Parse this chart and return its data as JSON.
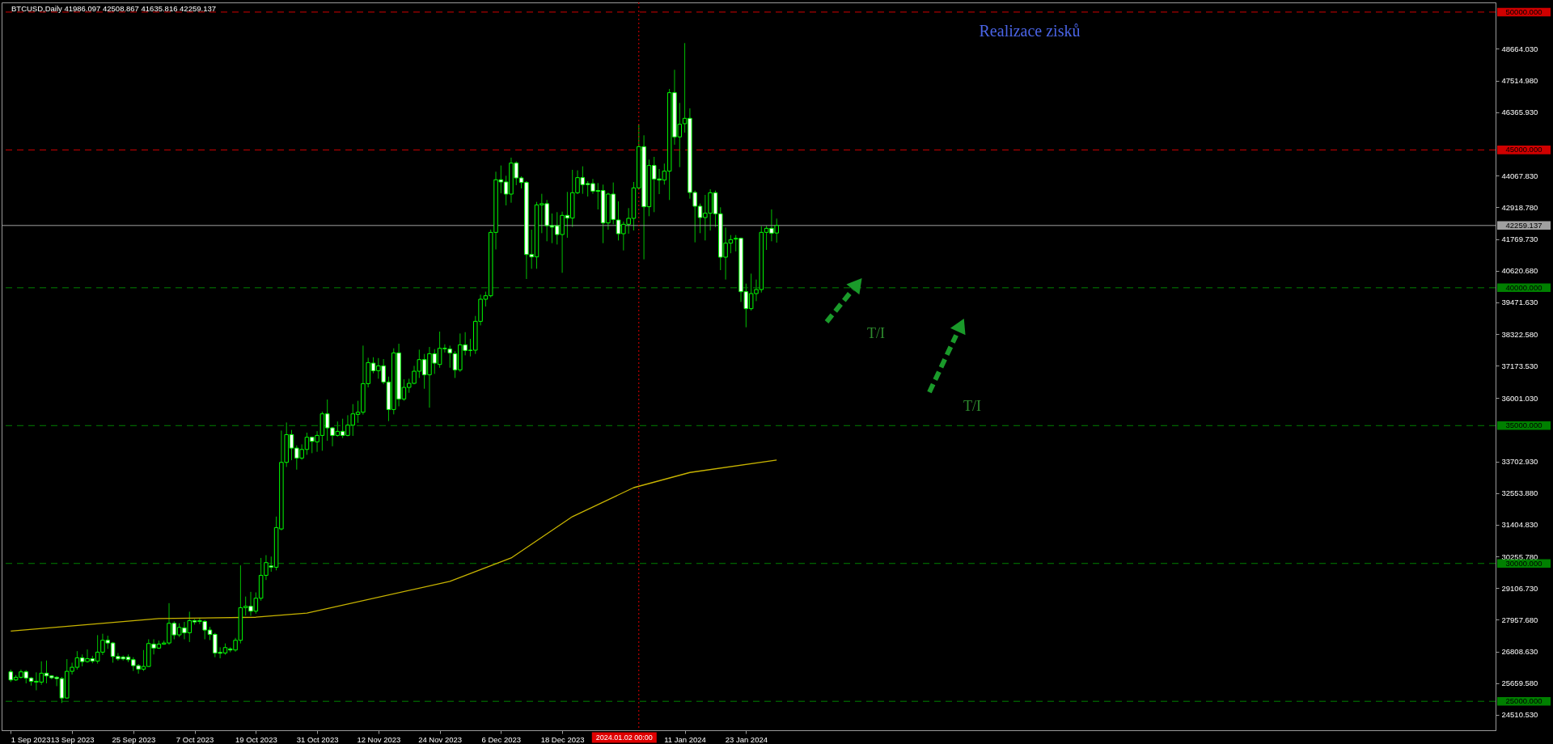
{
  "chart_data": {
    "type": "candlestick",
    "title": "BTCUSD,Daily  41986.097 42508.867 41635.816 42259.137",
    "x": [
      "2023-09-01",
      "2023-09-02",
      "2023-09-03",
      "2023-09-04",
      "2023-09-05",
      "2023-09-06",
      "2023-09-07",
      "2023-09-08",
      "2023-09-09",
      "2023-09-10",
      "2023-09-11",
      "2023-09-12",
      "2023-09-13",
      "2023-09-14",
      "2023-09-15",
      "2023-09-16",
      "2023-09-17",
      "2023-09-18",
      "2023-09-19",
      "2023-09-20",
      "2023-09-21",
      "2023-09-22",
      "2023-09-23",
      "2023-09-24",
      "2023-09-25",
      "2023-09-26",
      "2023-09-27",
      "2023-09-28",
      "2023-09-29",
      "2023-09-30",
      "2023-10-01",
      "2023-10-02",
      "2023-10-03",
      "2023-10-04",
      "2023-10-05",
      "2023-10-06",
      "2023-10-07",
      "2023-10-08",
      "2023-10-09",
      "2023-10-10",
      "2023-10-11",
      "2023-10-12",
      "2023-10-13",
      "2023-10-14",
      "2023-10-15",
      "2023-10-16",
      "2023-10-17",
      "2023-10-18",
      "2023-10-19",
      "2023-10-20",
      "2023-10-21",
      "2023-10-22",
      "2023-10-23",
      "2023-10-24",
      "2023-10-25",
      "2023-10-26",
      "2023-10-27",
      "2023-10-28",
      "2023-10-29",
      "2023-10-30",
      "2023-10-31",
      "2023-11-01",
      "2023-11-02",
      "2023-11-03",
      "2023-11-04",
      "2023-11-05",
      "2023-11-06",
      "2023-11-07",
      "2023-11-08",
      "2023-11-09",
      "2023-11-10",
      "2023-11-11",
      "2023-11-12",
      "2023-11-13",
      "2023-11-14",
      "2023-11-15",
      "2023-11-16",
      "2023-11-17",
      "2023-11-18",
      "2023-11-19",
      "2023-11-20",
      "2023-11-21",
      "2023-11-22",
      "2023-11-23",
      "2023-11-24",
      "2023-11-25",
      "2023-11-26",
      "2023-11-27",
      "2023-11-28",
      "2023-11-29",
      "2023-11-30",
      "2023-12-01",
      "2023-12-02",
      "2023-12-03",
      "2023-12-04",
      "2023-12-05",
      "2023-12-06",
      "2023-12-07",
      "2023-12-08",
      "2023-12-09",
      "2023-12-10",
      "2023-12-11",
      "2023-12-12",
      "2023-12-13",
      "2023-12-14",
      "2023-12-15",
      "2023-12-16",
      "2023-12-17",
      "2023-12-18",
      "2023-12-19",
      "2023-12-20",
      "2023-12-21",
      "2023-12-22",
      "2023-12-23",
      "2023-12-24",
      "2023-12-25",
      "2023-12-26",
      "2023-12-27",
      "2023-12-28",
      "2023-12-29",
      "2023-12-30",
      "2023-12-31",
      "2024-01-01",
      "2024-01-02",
      "2024-01-03",
      "2024-01-04",
      "2024-01-05",
      "2024-01-06",
      "2024-01-07",
      "2024-01-08",
      "2024-01-09",
      "2024-01-10",
      "2024-01-11",
      "2024-01-12",
      "2024-01-13",
      "2024-01-14",
      "2024-01-15",
      "2024-01-16",
      "2024-01-17",
      "2024-01-18",
      "2024-01-19",
      "2024-01-20",
      "2024-01-21",
      "2024-01-22",
      "2024-01-23",
      "2024-01-24",
      "2024-01-25",
      "2024-01-26",
      "2024-01-27",
      "2024-01-28",
      "2024-01-29"
    ],
    "ohlc": [
      [
        26069,
        26150,
        25700,
        25775
      ],
      [
        25775,
        25950,
        25740,
        25873
      ],
      [
        25873,
        26150,
        25820,
        26069
      ],
      [
        26069,
        26130,
        25650,
        25844
      ],
      [
        25844,
        25880,
        25570,
        25726
      ],
      [
        25726,
        26050,
        25400,
        25697
      ],
      [
        25697,
        26450,
        25600,
        26020
      ],
      [
        26020,
        26480,
        25650,
        25922
      ],
      [
        25922,
        25950,
        25800,
        25854
      ],
      [
        25873,
        25920,
        25550,
        25824
      ],
      [
        25824,
        25880,
        24940,
        25120
      ],
      [
        25120,
        26530,
        25100,
        26088
      ],
      [
        26088,
        26400,
        25970,
        26235
      ],
      [
        26235,
        26820,
        26150,
        26577
      ],
      [
        26577,
        26700,
        26270,
        26440
      ],
      [
        26440,
        26880,
        26400,
        26548
      ],
      [
        26548,
        26650,
        26380,
        26460
      ],
      [
        26460,
        27400,
        26370,
        26783
      ],
      [
        26783,
        27450,
        26680,
        27213
      ],
      [
        27213,
        27380,
        26900,
        27115
      ],
      [
        27115,
        27150,
        26400,
        26626
      ],
      [
        26626,
        26750,
        26470,
        26538
      ],
      [
        26607,
        26660,
        26480,
        26538
      ],
      [
        26607,
        26700,
        26420,
        26509
      ],
      [
        26509,
        26600,
        26100,
        26294
      ],
      [
        26294,
        26350,
        26000,
        26167
      ],
      [
        26167,
        26860,
        26100,
        26264
      ],
      [
        26264,
        27250,
        26250,
        27096
      ],
      [
        27076,
        27250,
        26700,
        26930
      ],
      [
        26930,
        27200,
        26900,
        27076
      ],
      [
        27076,
        27200,
        27050,
        27115
      ],
      [
        27115,
        28560,
        27050,
        27829
      ],
      [
        27829,
        27900,
        27250,
        27409
      ],
      [
        27409,
        27830,
        27330,
        27682
      ],
      [
        27663,
        27880,
        27250,
        27487
      ],
      [
        27487,
        28250,
        27150,
        27927
      ],
      [
        27927,
        27980,
        27780,
        27878
      ],
      [
        27927,
        28030,
        27800,
        27898
      ],
      [
        27898,
        27950,
        27250,
        27585
      ],
      [
        27585,
        27700,
        27220,
        27428
      ],
      [
        27428,
        27480,
        26600,
        26753
      ],
      [
        26773,
        26960,
        26560,
        26744
      ],
      [
        26753,
        27100,
        26690,
        26949
      ],
      [
        26900,
        26960,
        26780,
        26861
      ],
      [
        26861,
        27300,
        26800,
        27213
      ],
      [
        27213,
        29930,
        27100,
        28397
      ],
      [
        28397,
        28800,
        28110,
        28446
      ],
      [
        28446,
        28970,
        28100,
        28269
      ],
      [
        28269,
        28950,
        28180,
        28739
      ],
      [
        28739,
        30200,
        28650,
        29570
      ],
      [
        29570,
        30300,
        29400,
        30030
      ],
      [
        29912,
        30250,
        29700,
        29863
      ],
      [
        29863,
        31700,
        29750,
        31301
      ],
      [
        31252,
        34820,
        31200,
        33667
      ],
      [
        33667,
        35114,
        33500,
        34674
      ],
      [
        34674,
        34841,
        33745,
        34185
      ],
      [
        34185,
        34283,
        33403,
        33823
      ],
      [
        33823,
        34320,
        33760,
        34136
      ],
      [
        34136,
        34743,
        33941,
        34577
      ],
      [
        34577,
        34600,
        34000,
        34430
      ],
      [
        34410,
        34800,
        34050,
        34645
      ],
      [
        34645,
        35506,
        34087,
        35427
      ],
      [
        35427,
        35946,
        34450,
        34919
      ],
      [
        34919,
        34950,
        34250,
        34645
      ],
      [
        34645,
        35150,
        34600,
        34792
      ],
      [
        34792,
        35250,
        34550,
        34645
      ],
      [
        34645,
        35378,
        34610,
        35017
      ],
      [
        35017,
        35780,
        34626,
        35427
      ],
      [
        35408,
        35900,
        35100,
        35486
      ],
      [
        35486,
        37902,
        35400,
        36523
      ],
      [
        36523,
        37462,
        36386,
        37286
      ],
      [
        37266,
        37480,
        36900,
        36992
      ],
      [
        36992,
        37450,
        36700,
        37168
      ],
      [
        37168,
        37413,
        36500,
        36581
      ],
      [
        36581,
        36777,
        35163,
        35584
      ],
      [
        35584,
        37804,
        35408,
        37638
      ],
      [
        37638,
        37970,
        35700,
        35965
      ],
      [
        35965,
        36679,
        35900,
        36386
      ],
      [
        36386,
        36700,
        36190,
        36533
      ],
      [
        36533,
        37168,
        36500,
        36973
      ],
      [
        36973,
        37755,
        36728,
        37393
      ],
      [
        37393,
        37600,
        36337,
        36846
      ],
      [
        36846,
        37853,
        35653,
        37608
      ],
      [
        37608,
        37775,
        36875,
        37266
      ],
      [
        37217,
        38410,
        37100,
        37804
      ],
      [
        37804,
        37950,
        37650,
        37790
      ],
      [
        37775,
        37900,
        37100,
        37638
      ],
      [
        37608,
        37700,
        36728,
        37022
      ],
      [
        37022,
        38342,
        36950,
        37931
      ],
      [
        37931,
        38390,
        37550,
        37726
      ],
      [
        37726,
        38146,
        37510,
        37736
      ],
      [
        37736,
        38978,
        37600,
        38782
      ],
      [
        38782,
        39750,
        38635,
        39584
      ],
      [
        39584,
        39860,
        39320,
        39711
      ],
      [
        39711,
        42110,
        39650,
        42009
      ],
      [
        42009,
        44210,
        41390,
        43917
      ],
      [
        43917,
        44435,
        43428,
        43838
      ],
      [
        43838,
        44063,
        42988,
        43398
      ],
      [
        43398,
        44719,
        43085,
        44523
      ],
      [
        44523,
        44582,
        43721,
        43985
      ],
      [
        43985,
        44044,
        43604,
        43819
      ],
      [
        43819,
        43868,
        40318,
        41207
      ],
      [
        41207,
        42107,
        40689,
        41120
      ],
      [
        41120,
        43115,
        40689,
        43007
      ],
      [
        43007,
        43408,
        41980,
        43050
      ],
      [
        43050,
        43183,
        41687,
        42254
      ],
      [
        42254,
        42694,
        41618,
        42200
      ],
      [
        42250,
        42743,
        41569,
        41931
      ],
      [
        41931,
        42763,
        40543,
        42626
      ],
      [
        42626,
        43477,
        41814,
        42528
      ],
      [
        42528,
        44278,
        42205,
        43447
      ],
      [
        43447,
        44259,
        43398,
        43995
      ],
      [
        43995,
        44406,
        43408,
        43741
      ],
      [
        43780,
        43868,
        43310,
        43741
      ],
      [
        43780,
        43946,
        43408,
        43506
      ],
      [
        43526,
        43799,
        42841,
        43497
      ],
      [
        43526,
        43741,
        41618,
        42352
      ],
      [
        42352,
        43447,
        42107,
        43398
      ],
      [
        43398,
        43819,
        42303,
        42479
      ],
      [
        42459,
        43134,
        41716,
        41961
      ],
      [
        41961,
        42401,
        41354,
        42303
      ],
      [
        42303,
        42890,
        41961,
        42518
      ],
      [
        42518,
        43838,
        42078,
        43623
      ],
      [
        43623,
        45922,
        43574,
        45119
      ],
      [
        45119,
        45530,
        41031,
        42939
      ],
      [
        42939,
        44650,
        42596,
        44435
      ],
      [
        44435,
        44748,
        42743,
        43946
      ],
      [
        43946,
        44308,
        43398,
        43907
      ],
      [
        43907,
        44504,
        43741,
        44230
      ],
      [
        44230,
        47212,
        43183,
        47076
      ],
      [
        47076,
        47907,
        45188,
        45472
      ],
      [
        45472,
        46704,
        44376,
        45931
      ],
      [
        45951,
        48875,
        45628,
        46146
      ],
      [
        46146,
        46508,
        43232,
        43457
      ],
      [
        43457,
        43525,
        41648,
        42958
      ],
      [
        42958,
        43056,
        41980,
        42547
      ],
      [
        42547,
        43369,
        41716,
        42704
      ],
      [
        42704,
        43574,
        42078,
        43447
      ],
      [
        43447,
        43525,
        42205,
        42684
      ],
      [
        42684,
        42919,
        40640,
        41110
      ],
      [
        41110,
        42186,
        40298,
        41618
      ],
      [
        41618,
        41912,
        41252,
        41745
      ],
      [
        41765,
        41912,
        41321,
        41794
      ],
      [
        41794,
        41820,
        39486,
        39858
      ],
      [
        39858,
        40151,
        38567,
        39242
      ],
      [
        39242,
        40513,
        39173,
        39789
      ],
      [
        39789,
        40298,
        39516,
        39936
      ],
      [
        39936,
        42234,
        39828,
        42010
      ],
      [
        42010,
        42250,
        41374,
        42156
      ],
      [
        42156,
        42841,
        41687,
        41980
      ],
      [
        41986.097,
        42508.867,
        41635.816,
        42259.137
      ]
    ],
    "series": [
      {
        "type": "line",
        "color": "#c8b400",
        "x": [
          "2023-09-01",
          "2023-09-30",
          "2023-10-19",
          "2023-10-29",
          "2023-11-26",
          "2023-12-08",
          "2023-12-20",
          "2024-01-01",
          "2024-01-12",
          "2024-01-29"
        ],
        "values": [
          27550,
          28000,
          28050,
          28200,
          29350,
          30200,
          31700,
          32750,
          33300,
          33750
        ]
      }
    ],
    "xlim": [
      "2023-08-31",
      "2024-06-17"
    ],
    "xticks": [
      {
        "value": "2023-09-01",
        "label": "1 Sep 2023"
      },
      {
        "value": "2023-09-13",
        "label": "13 Sep 2023"
      },
      {
        "value": "2023-09-25",
        "label": "25 Sep 2023"
      },
      {
        "value": "2023-10-07",
        "label": "7 Oct 2023"
      },
      {
        "value": "2023-10-19",
        "label": "19 Oct 2023"
      },
      {
        "value": "2023-10-31",
        "label": "31 Oct 2023"
      },
      {
        "value": "2023-11-12",
        "label": "12 Nov 2023"
      },
      {
        "value": "2023-11-24",
        "label": "24 Nov 2023"
      },
      {
        "value": "2023-12-06",
        "label": "6 Dec 2023"
      },
      {
        "value": "2023-12-18",
        "label": "18 Dec 2023"
      },
      {
        "value": "2024-01-11",
        "label": "11 Jan 2024"
      },
      {
        "value": "2024-01-23",
        "label": "23 Jan 2024"
      }
    ],
    "ylim": [
      23950,
      50350
    ],
    "yticks": [
      {
        "value": 48664.03,
        "label": "48664.030"
      },
      {
        "value": 47514.98,
        "label": "47514.980"
      },
      {
        "value": 46365.93,
        "label": "46365.930"
      },
      {
        "value": 44067.83,
        "label": "44067.830"
      },
      {
        "value": 42918.78,
        "label": "42918.780"
      },
      {
        "value": 41769.73,
        "label": "41769.730"
      },
      {
        "value": 40620.68,
        "label": "40620.680"
      },
      {
        "value": 39471.63,
        "label": "39471.630"
      },
      {
        "value": 38322.58,
        "label": "38322.580"
      },
      {
        "value": 37173.53,
        "label": "37173.530"
      },
      {
        "value": 36001.03,
        "label": "36001.030"
      },
      {
        "value": 33702.93,
        "label": "33702.930"
      },
      {
        "value": 32553.88,
        "label": "32553.880"
      },
      {
        "value": 31404.83,
        "label": "31404.830"
      },
      {
        "value": 30255.78,
        "label": "30255.780"
      },
      {
        "value": 29106.73,
        "label": "29106.730"
      },
      {
        "value": 27957.68,
        "label": "27957.680"
      },
      {
        "value": 26808.63,
        "label": "26808.630"
      },
      {
        "value": 25659.58,
        "label": "25659.580"
      },
      {
        "value": 24510.53,
        "label": "24510.530"
      }
    ],
    "ref_lines": [
      {
        "axis": "y",
        "value": 50000,
        "label": "50000.000",
        "color": "#d00000",
        "line_style": "dashed"
      },
      {
        "axis": "y",
        "value": 45000,
        "label": "45000.000",
        "color": "#d00000",
        "line_style": "dashed"
      },
      {
        "axis": "y",
        "value": 42259.137,
        "label": "42259.137",
        "color": "#a0a0a0",
        "line_style": "solid"
      },
      {
        "axis": "y",
        "value": 40000,
        "label": "40000.000",
        "color": "#008000",
        "line_style": "dashed"
      },
      {
        "axis": "y",
        "value": 35000,
        "label": "35000.000",
        "color": "#008000",
        "line_style": "dashed"
      },
      {
        "axis": "y",
        "value": 30000,
        "label": "30000.000",
        "color": "#008000",
        "line_style": "dashed"
      },
      {
        "axis": "y",
        "value": 25000,
        "label": "25000.000",
        "color": "#008000",
        "line_style": "dashed"
      },
      {
        "axis": "x",
        "value": "2024-01-02",
        "label": "2024.01.02 00:00",
        "color": "#e00000",
        "line_style": "dotted"
      }
    ],
    "annotations": [
      "Realizace zisků",
      "T/I",
      "T/I"
    ],
    "grid": false
  }
}
